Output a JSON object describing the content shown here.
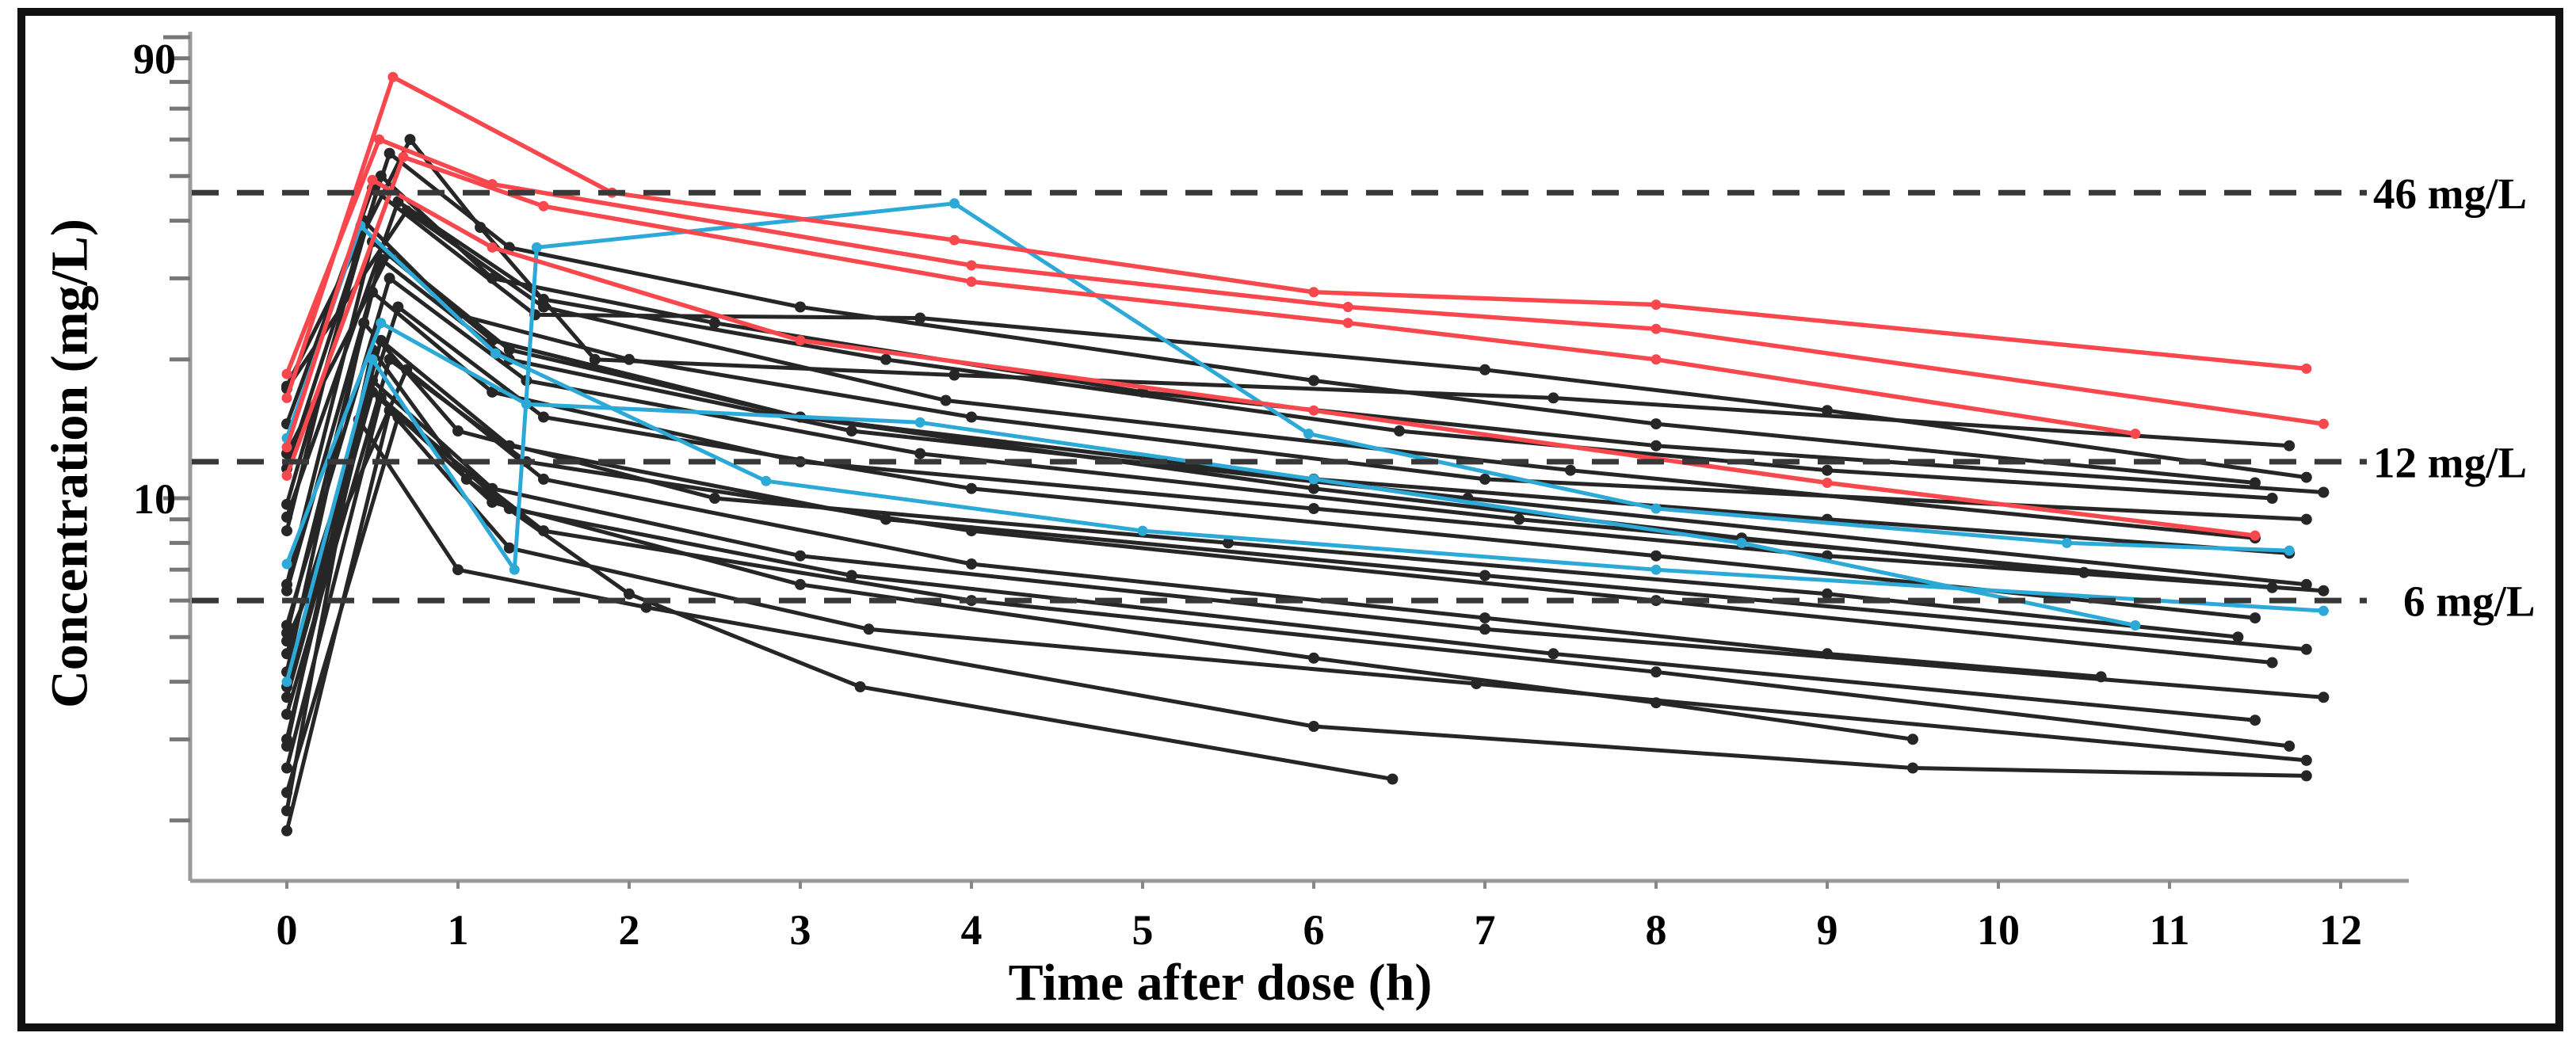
{
  "figure": {
    "palette": {
      "black": "#262626",
      "red": "#f8484e",
      "blue": "#2da9d8",
      "axis": "#9a9a9a",
      "dash": "#383838",
      "border": "#111111",
      "text": "#000000"
    }
  },
  "chart_data": {
    "type": "line",
    "title": "",
    "xlabel": "Time after dose (h)",
    "ylabel": "Concentration (mg/L)",
    "y_scale": "log",
    "x_range": [
      -0.55,
      12.4
    ],
    "y_range_mg_L": [
      1.5,
      103
    ],
    "grid": "off",
    "legend": "none",
    "x_ticks": [
      0,
      1,
      2,
      3,
      4,
      5,
      6,
      7,
      8,
      9,
      10,
      11,
      12
    ],
    "y_labeled_ticks": [
      {
        "value": 90,
        "label": "90"
      },
      {
        "value": 10,
        "label": "10"
      }
    ],
    "y_minor_ticks": [
      100,
      90,
      80,
      70,
      60,
      50,
      40,
      30,
      20,
      10,
      9,
      8,
      7,
      6,
      5,
      4,
      3,
      2
    ],
    "reference_lines": [
      {
        "value": 46,
        "label": "46 mg/L",
        "indent": 0
      },
      {
        "value": 12,
        "label": "12 mg/L",
        "indent": 0
      },
      {
        "value": 6,
        "label": "6 mg/L",
        "indent": 38
      }
    ],
    "series": [
      {
        "name": "black-01",
        "group": "black",
        "points": [
          [
            0,
            17.5
          ],
          [
            0.72,
            60
          ],
          [
            1.13,
            38.7
          ],
          [
            1.8,
            20
          ],
          [
            3.9,
            18.5
          ],
          [
            7.4,
            16.5
          ],
          [
            11.7,
            13.0
          ]
        ]
      },
      {
        "name": "black-02",
        "group": "black",
        "points": [
          [
            0,
            14.5
          ],
          [
            0.5,
            47
          ],
          [
            1.45,
            25
          ],
          [
            3.7,
            24.6
          ],
          [
            7,
            19
          ],
          [
            9,
            15.5
          ],
          [
            11.8,
            11.1
          ]
        ]
      },
      {
        "name": "black-03",
        "group": "black",
        "points": [
          [
            0,
            11.6
          ],
          [
            0.6,
            56
          ],
          [
            1.3,
            35
          ],
          [
            3,
            26
          ],
          [
            6,
            18
          ],
          [
            8,
            14.5
          ],
          [
            11.5,
            10.8
          ]
        ]
      },
      {
        "name": "black-04",
        "group": "black",
        "points": [
          [
            0,
            9.7
          ],
          [
            0.55,
            50
          ],
          [
            1.2,
            30
          ],
          [
            2.5,
            24
          ],
          [
            5,
            17
          ],
          [
            8,
            13
          ],
          [
            11.9,
            10.3
          ]
        ]
      },
      {
        "name": "black-05",
        "group": "black",
        "points": [
          [
            0,
            9.1
          ],
          [
            0.65,
            44
          ],
          [
            1.5,
            27
          ],
          [
            3.5,
            20
          ],
          [
            6.5,
            14
          ],
          [
            9,
            11.5
          ],
          [
            11.6,
            10.0
          ]
        ]
      },
      {
        "name": "black-06",
        "group": "black",
        "points": [
          [
            0,
            8.5
          ],
          [
            0.45,
            40
          ],
          [
            1,
            25
          ],
          [
            2,
            20
          ],
          [
            4,
            15
          ],
          [
            7,
            11
          ],
          [
            11.8,
            9.0
          ]
        ]
      },
      {
        "name": "black-07",
        "group": "black",
        "points": [
          [
            0,
            17.3
          ],
          [
            0.7,
            42
          ],
          [
            1.5,
            26
          ],
          [
            3.85,
            16.3
          ],
          [
            7.5,
            11.5
          ],
          [
            11.5,
            8.2
          ]
        ]
      },
      {
        "name": "black-08",
        "group": "black",
        "points": [
          [
            0,
            6.5
          ],
          [
            0.5,
            36
          ],
          [
            1.2,
            22
          ],
          [
            3,
            15
          ],
          [
            6,
            11
          ],
          [
            9,
            9
          ],
          [
            11.7,
            7.6
          ]
        ]
      },
      {
        "name": "black-09",
        "group": "black",
        "points": [
          [
            0,
            6.3
          ],
          [
            0.55,
            33
          ],
          [
            1.3,
            20
          ],
          [
            3.3,
            14
          ],
          [
            6.9,
            10
          ],
          [
            11.8,
            6.5
          ]
        ]
      },
      {
        "name": "black-10",
        "group": "black",
        "points": [
          [
            0,
            5.3
          ],
          [
            0.6,
            30
          ],
          [
            1.4,
            18
          ],
          [
            3.7,
            12.5
          ],
          [
            7.2,
            9
          ],
          [
            11.6,
            6.4
          ]
        ]
      },
      {
        "name": "black-11",
        "group": "black",
        "points": [
          [
            0,
            5.1
          ],
          [
            0.5,
            28
          ],
          [
            1.2,
            17
          ],
          [
            3,
            12
          ],
          [
            6,
            9.5
          ],
          [
            9,
            7.5
          ],
          [
            11.9,
            6.3
          ]
        ]
      },
      {
        "name": "black-12",
        "group": "black",
        "points": [
          [
            0,
            4.6
          ],
          [
            0.65,
            26
          ],
          [
            1.5,
            15
          ],
          [
            4,
            10.5
          ],
          [
            8,
            7.5
          ],
          [
            11.5,
            5.5
          ]
        ]
      },
      {
        "name": "black-13",
        "group": "black",
        "points": [
          [
            0,
            4.2
          ],
          [
            0.45,
            24
          ],
          [
            1,
            14
          ],
          [
            2.5,
            10
          ],
          [
            5.5,
            8
          ],
          [
            9,
            6.2
          ],
          [
            11.4,
            5.0
          ]
        ]
      },
      {
        "name": "black-14",
        "group": "black",
        "points": [
          [
            0,
            3.9
          ],
          [
            0.55,
            22
          ],
          [
            1.3,
            13
          ],
          [
            3.5,
            9
          ],
          [
            7,
            6.8
          ],
          [
            11.8,
            4.7
          ]
        ]
      },
      {
        "name": "black-15",
        "group": "black",
        "points": [
          [
            0,
            3.4
          ],
          [
            0.6,
            20
          ],
          [
            1.4,
            12
          ],
          [
            4,
            8.5
          ],
          [
            8,
            6.0
          ],
          [
            11.6,
            4.4
          ]
        ]
      },
      {
        "name": "black-16",
        "group": "black",
        "points": [
          [
            0,
            3.0
          ],
          [
            0.5,
            18
          ],
          [
            1.2,
            10.5
          ],
          [
            3,
            7.5
          ],
          [
            7,
            5.2
          ],
          [
            11.9,
            3.7
          ]
        ]
      },
      {
        "name": "black-17",
        "group": "black",
        "points": [
          [
            0,
            2.6
          ],
          [
            0.55,
            16.5
          ],
          [
            1.3,
            9.5
          ],
          [
            3.3,
            6.8
          ],
          [
            7.4,
            4.6
          ],
          [
            11.5,
            3.3
          ]
        ]
      },
      {
        "name": "black-18",
        "group": "black",
        "points": [
          [
            0,
            2.3
          ],
          [
            0.65,
            15
          ],
          [
            1.5,
            8.5
          ],
          [
            4,
            6.0
          ],
          [
            8,
            4.2
          ],
          [
            11.7,
            2.9
          ]
        ]
      },
      {
        "name": "black-19",
        "group": "black",
        "points": [
          [
            0,
            1.9
          ],
          [
            0.6,
            15.5
          ],
          [
            1.3,
            7.8
          ],
          [
            3.4,
            5.2
          ],
          [
            6.95,
            3.96
          ],
          [
            11.8,
            2.7
          ]
        ]
      },
      {
        "name": "black-20",
        "group": "black",
        "points": [
          [
            0,
            2.1
          ],
          [
            0.42,
            14.8
          ],
          [
            1,
            7.0
          ],
          [
            2.1,
            5.8
          ],
          [
            6,
            3.2
          ],
          [
            9.5,
            2.6
          ],
          [
            11.8,
            2.5
          ]
        ]
      },
      {
        "name": "black-21",
        "group": "black",
        "points": [
          [
            0,
            2.9
          ],
          [
            0.5,
            21
          ],
          [
            1.05,
            11
          ],
          [
            2,
            6.2
          ],
          [
            3.35,
            3.9
          ],
          [
            6.46,
            2.46
          ]
        ]
      },
      {
        "name": "black-22",
        "group": "black",
        "points": [
          [
            0,
            12.5
          ],
          [
            0.6,
            34
          ],
          [
            1.3,
            21
          ],
          [
            3,
            15
          ],
          [
            6,
            10.5
          ],
          [
            8.5,
            8.2
          ],
          [
            10.5,
            6.9
          ]
        ]
      },
      {
        "name": "black-23",
        "group": "black",
        "points": [
          [
            0,
            4.9
          ],
          [
            0.7,
            19
          ],
          [
            1.5,
            11
          ],
          [
            4,
            7.2
          ],
          [
            7,
            5.5
          ],
          [
            9,
            4.6
          ],
          [
            10.6,
            4.1
          ]
        ]
      },
      {
        "name": "black-24",
        "group": "black",
        "points": [
          [
            0,
            3.7
          ],
          [
            0.5,
            17
          ],
          [
            1.2,
            9.8
          ],
          [
            3,
            6.5
          ],
          [
            6,
            4.5
          ],
          [
            8,
            3.6
          ],
          [
            9.5,
            3.0
          ]
        ]
      },
      {
        "name": "blue-1",
        "group": "blue",
        "points": [
          [
            0,
            4.0
          ],
          [
            0.5,
            20
          ],
          [
            1.33,
            7.0
          ],
          [
            1.46,
            35
          ],
          [
            3.9,
            43.6
          ],
          [
            5.97,
            13.8
          ],
          [
            8,
            9.5
          ],
          [
            10.4,
            8.0
          ],
          [
            11.7,
            7.7
          ]
        ]
      },
      {
        "name": "blue-2",
        "group": "blue",
        "points": [
          [
            0,
            13.5
          ],
          [
            0.43,
            39
          ],
          [
            1.22,
            20.6
          ],
          [
            2.8,
            10.9
          ],
          [
            5,
            8.5
          ],
          [
            8,
            7.0
          ],
          [
            11.9,
            5.7
          ]
        ]
      },
      {
        "name": "blue-3",
        "group": "blue",
        "points": [
          [
            0,
            7.2
          ],
          [
            0.55,
            24
          ],
          [
            1.4,
            16
          ],
          [
            3.7,
            14.6
          ],
          [
            6,
            11
          ],
          [
            8.5,
            8
          ],
          [
            10.8,
            5.3
          ]
        ]
      },
      {
        "name": "red-1",
        "group": "red",
        "points": [
          [
            0,
            16.5
          ],
          [
            0.62,
            82
          ],
          [
            1.9,
            46
          ],
          [
            3.9,
            36.3
          ],
          [
            6,
            28
          ],
          [
            8,
            26.3
          ],
          [
            11.8,
            19.1
          ]
        ]
      },
      {
        "name": "red-2",
        "group": "red",
        "points": [
          [
            0,
            18.6
          ],
          [
            0.54,
            60
          ],
          [
            1.2,
            48
          ],
          [
            4,
            32
          ],
          [
            6.2,
            26
          ],
          [
            8,
            23.3
          ],
          [
            11.9,
            14.5
          ]
        ]
      },
      {
        "name": "red-3",
        "group": "red",
        "points": [
          [
            0,
            11.2
          ],
          [
            0.68,
            55
          ],
          [
            1.5,
            43
          ],
          [
            4,
            29.5
          ],
          [
            6.2,
            24
          ],
          [
            8,
            20
          ],
          [
            10.8,
            13.8
          ]
        ]
      },
      {
        "name": "red-4",
        "group": "red",
        "points": [
          [
            0,
            12.9
          ],
          [
            0.5,
            49
          ],
          [
            1.2,
            35
          ],
          [
            3,
            22
          ],
          [
            6,
            15.5
          ],
          [
            9,
            10.8
          ],
          [
            11.5,
            8.3
          ]
        ]
      }
    ]
  }
}
